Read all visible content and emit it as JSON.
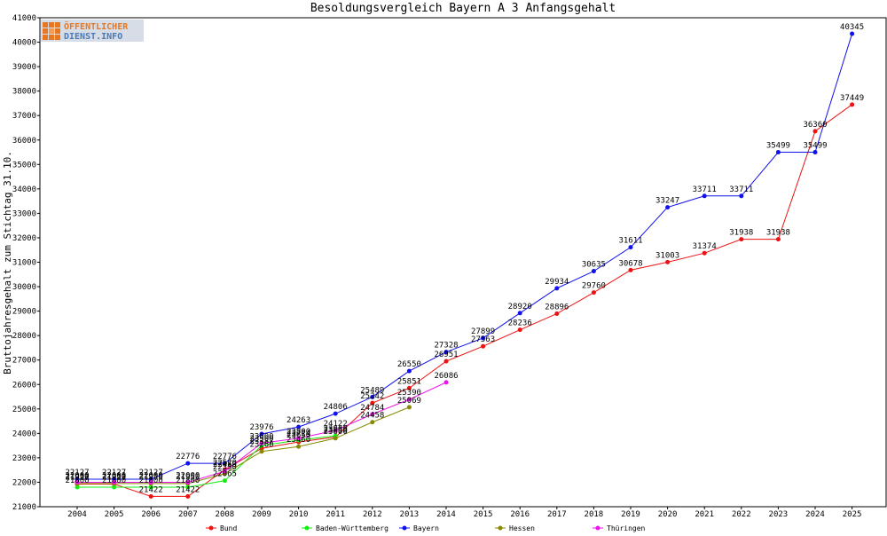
{
  "chart_data": {
    "type": "line",
    "title": "Besoldungsvergleich Bayern A 3 Anfangsgehalt",
    "ylabel": "Bruttojahresgehalt zum Stichtag 31.10.",
    "xlabel": "",
    "ylim": [
      21000,
      41000
    ],
    "y_ticks": [
      21000,
      22000,
      23000,
      24000,
      25000,
      26000,
      27000,
      28000,
      29000,
      30000,
      31000,
      32000,
      33000,
      34000,
      35000,
      36000,
      37000,
      38000,
      39000,
      40000,
      41000
    ],
    "categories": [
      "2004",
      "2005",
      "2006",
      "2007",
      "2008",
      "2009",
      "2010",
      "2011",
      "2012",
      "2013",
      "2014",
      "2015",
      "2016",
      "2017",
      "2018",
      "2019",
      "2020",
      "2021",
      "2022",
      "2023",
      "2024",
      "2025"
    ],
    "grid": false,
    "legend_position": "bottom",
    "series": [
      {
        "name": "Bund",
        "color": "#ee1111",
        "label_color": "#000000",
        "values": [
          21927,
          21927,
          21422,
          21422,
          22520,
          23387,
          23650,
          23850,
          25242,
          25851,
          26951,
          27563,
          28236,
          28896,
          29760,
          30678,
          31003,
          31374,
          31938,
          31938,
          36360,
          37449
        ]
      },
      {
        "name": "Baden-Württemberg",
        "color": "#11ee11",
        "label_color": "#000000",
        "values": [
          21800,
          21800,
          21800,
          21800,
          22065,
          23500,
          23724,
          23900,
          null,
          null,
          null,
          null,
          null,
          null,
          null,
          null,
          null,
          null,
          null,
          null,
          null,
          null
        ]
      },
      {
        "name": "Bayern",
        "color": "#1111ee",
        "label_color": "#000000",
        "values": [
          22127,
          22127,
          22127,
          22776,
          22776,
          23976,
          24263,
          24806,
          25489,
          26550,
          27328,
          27899,
          28920,
          29934,
          30635,
          31611,
          33247,
          33711,
          33711,
          35499,
          35499,
          40345
        ]
      },
      {
        "name": "Hessen",
        "color": "#888800",
        "label_color": "#000000",
        "values": [
          21950,
          21950,
          21950,
          21950,
          22350,
          23260,
          23460,
          23800,
          24458,
          25069,
          null,
          null,
          null,
          null,
          null,
          null,
          null,
          null,
          null,
          null,
          null,
          null
        ]
      },
      {
        "name": "Thüringen",
        "color": "#ee11ee",
        "label_color": "#000000",
        "values": [
          22000,
          22000,
          22000,
          22000,
          22450,
          23600,
          23800,
          24122,
          24784,
          25390,
          26086,
          null,
          null,
          null,
          null,
          null,
          null,
          null,
          null,
          null,
          null,
          null
        ]
      }
    ]
  },
  "logo": {
    "line1": "ÖFFENTLICHER",
    "line2": "DIENST.INFO"
  }
}
